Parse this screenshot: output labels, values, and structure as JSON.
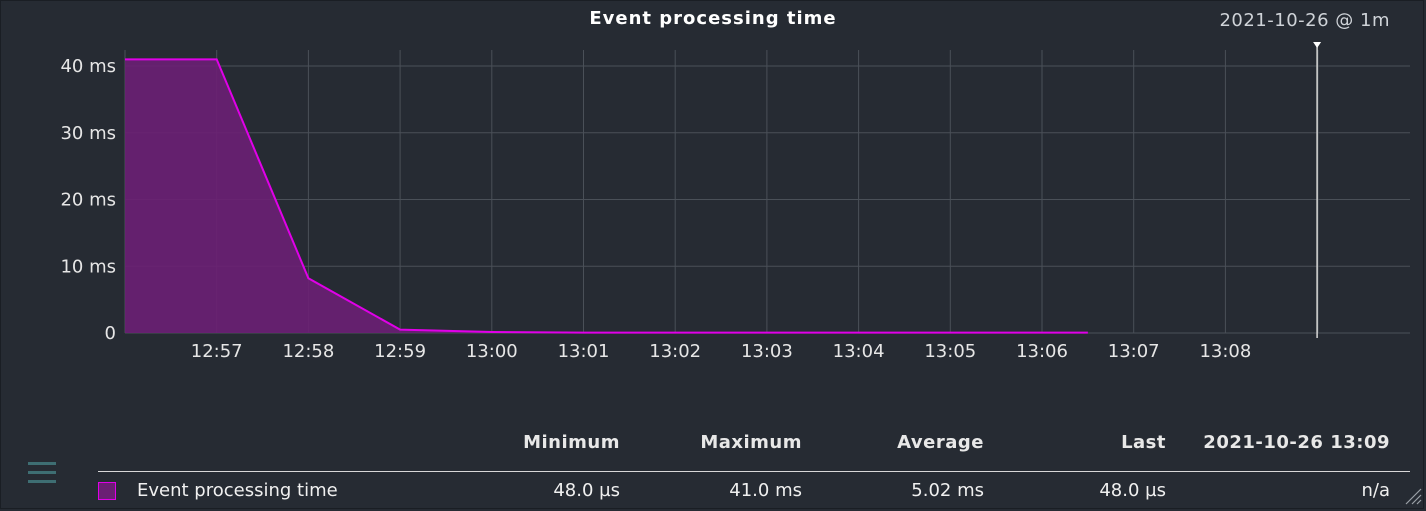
{
  "title": "Event processing time",
  "timestamp": "2021-10-26 @ 1m",
  "chart_data": {
    "type": "area",
    "title": "Event processing time",
    "xlabel": "",
    "ylabel": "",
    "x_tick_labels": [
      "12:57",
      "12:58",
      "12:59",
      "13:00",
      "13:01",
      "13:02",
      "13:03",
      "13:04",
      "13:05",
      "13:06",
      "13:07",
      "13:08"
    ],
    "y_tick_labels": [
      "0",
      "10 ms",
      "20 ms",
      "30 ms",
      "40 ms"
    ],
    "y_ticks": [
      0,
      10,
      20,
      30,
      40
    ],
    "ylim": [
      0,
      41
    ],
    "x_range": [
      "12:56",
      "13:09"
    ],
    "grid": true,
    "series": [
      {
        "name": "Event processing time",
        "color": "#e000e8",
        "fill": "#6b1f74",
        "points": [
          {
            "x": "12:56",
            "y": 41.0
          },
          {
            "x": "12:57",
            "y": 41.0
          },
          {
            "x": "12:58",
            "y": 8.2
          },
          {
            "x": "12:59",
            "y": 0.5
          },
          {
            "x": "13:00",
            "y": 0.15
          },
          {
            "x": "13:01",
            "y": 0.05
          },
          {
            "x": "13:02",
            "y": 0.05
          },
          {
            "x": "13:03",
            "y": 0.05
          },
          {
            "x": "13:04",
            "y": 0.05
          },
          {
            "x": "13:05",
            "y": 0.05
          },
          {
            "x": "13:06",
            "y": 0.05
          },
          {
            "x": "13:06:30",
            "y": 0.05
          }
        ]
      }
    ],
    "cursor_time": "13:09"
  },
  "legend": {
    "headers": [
      "Minimum",
      "Maximum",
      "Average",
      "Last",
      "2021-10-26 13:09"
    ],
    "rows": [
      {
        "name": "Event processing time",
        "minimum": "48.0 µs",
        "maximum": "41.0 ms",
        "average": "5.02 ms",
        "last": "48.0 µs",
        "at_time": "n/a"
      }
    ]
  },
  "colors": {
    "background": "#262b33",
    "grid": "#4a5058",
    "series_line": "#e000e8",
    "series_fill": "#6b1f74"
  },
  "icons": {
    "menu": "hamburger-menu-icon",
    "resize": "resize-handle-icon"
  }
}
